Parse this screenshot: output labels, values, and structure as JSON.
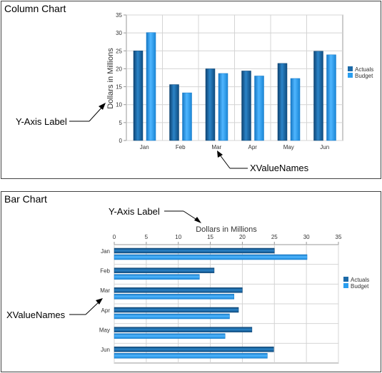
{
  "chart_data": [
    {
      "type": "bar",
      "orientation": "vertical",
      "title": "Column Chart",
      "categories": [
        "Jan",
        "Feb",
        "Mar",
        "Apr",
        "May",
        "Jun"
      ],
      "series": [
        {
          "name": "Actuals",
          "values": [
            25,
            15.6,
            20,
            19.4,
            21.5,
            24.9
          ]
        },
        {
          "name": "Budget",
          "values": [
            30.1,
            13.3,
            18.7,
            18,
            17.3,
            23.9
          ]
        }
      ],
      "ylabel": "Dollars in Millions",
      "ylim": [
        0,
        35
      ],
      "ticks": [
        "0",
        "5",
        "10",
        "15",
        "20",
        "25",
        "30",
        "35"
      ],
      "grid": true,
      "legend": "right",
      "annotations": [
        "Y-Axis Label",
        "XValueNames"
      ]
    },
    {
      "type": "bar",
      "orientation": "horizontal",
      "title": "Bar Chart",
      "categories": [
        "Jan",
        "Feb",
        "Mar",
        "Apr",
        "May",
        "Jun"
      ],
      "series": [
        {
          "name": "Actuals",
          "values": [
            25,
            15.6,
            20,
            19.4,
            21.5,
            24.9
          ]
        },
        {
          "name": "Budget",
          "values": [
            30.1,
            13.3,
            18.7,
            18,
            17.3,
            23.9
          ]
        }
      ],
      "xlabel": "Dollars in Millions",
      "xlim": [
        0,
        35
      ],
      "ticks": [
        "0",
        "5",
        "10",
        "15",
        "20",
        "25",
        "30",
        "35"
      ],
      "grid": true,
      "legend": "right",
      "annotations": [
        "Y-Axis Label",
        "XValueNames"
      ]
    }
  ],
  "colors": {
    "actuals": "#1c6aa8",
    "actuals_dark": "#0e4473",
    "budget": "#2a9ef0",
    "budget_dark": "#1577c4",
    "grid": "#d4d4d4",
    "axis": "#999999"
  }
}
